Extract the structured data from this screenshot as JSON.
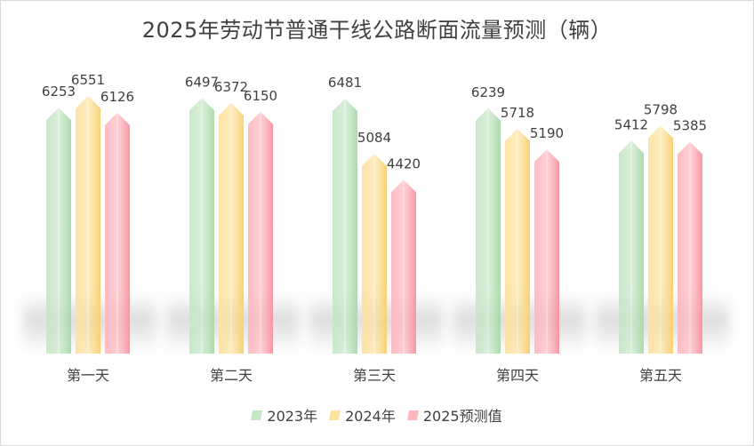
{
  "chart_data": {
    "type": "bar",
    "title": "2025年劳动节普通干线公路断面流量预测（辆）",
    "categories": [
      "第一天",
      "第二天",
      "第三天",
      "第四天",
      "第五天"
    ],
    "series": [
      {
        "name": "2023年",
        "values": [
          6253,
          6497,
          6481,
          6239,
          5412
        ],
        "color": "#c6e7c6"
      },
      {
        "name": "2024年",
        "values": [
          6551,
          6372,
          5084,
          5718,
          5798
        ],
        "color": "#fde2a0"
      },
      {
        "name": "2025预测值",
        "values": [
          6126,
          6150,
          4420,
          5190,
          5385
        ],
        "color": "#ffb8c0"
      }
    ],
    "ylim": [
      0,
      7000
    ],
    "grid": false,
    "legend_position": "bottom"
  }
}
